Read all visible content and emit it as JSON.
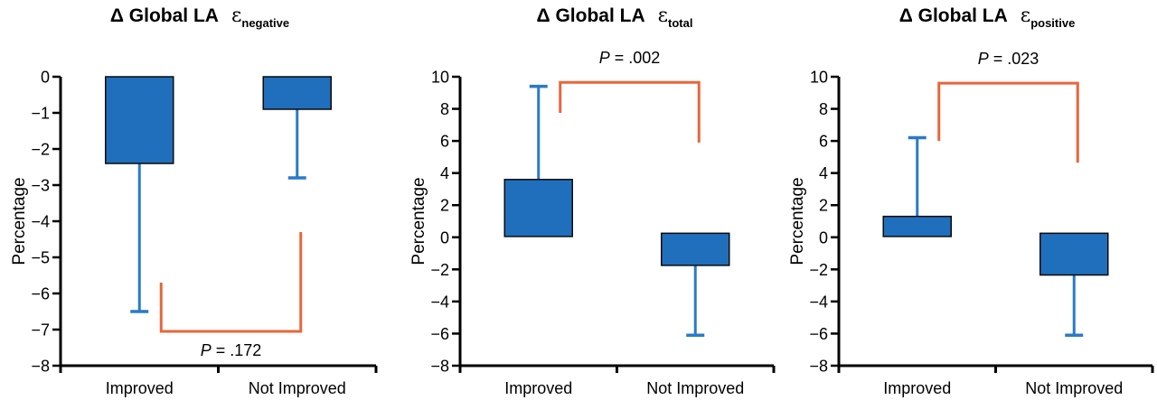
{
  "colors": {
    "bar_fill": "#1f6fbd",
    "bar_stroke": "#0a0a0a",
    "error_bar": "#2a7ac8",
    "bracket": "#e8663a",
    "axis": "#000000"
  },
  "chart_data": [
    {
      "type": "bar",
      "title": "Δ Global LA",
      "title_symbol": "ε",
      "title_subscript": "negative",
      "xlabel": "",
      "ylabel": "Percentage",
      "ylim": [
        -8,
        0
      ],
      "yticks": [
        0,
        -1,
        -2,
        -3,
        -4,
        -5,
        -6,
        -7,
        -8
      ],
      "ytick_labels": [
        "0",
        "−1",
        "−2",
        "−3",
        "−4",
        "−5",
        "−6",
        "−7",
        "−8"
      ],
      "categories": [
        "Improved",
        "Not Improved"
      ],
      "values": [
        -2.4,
        -0.9
      ],
      "error_bars": [
        -6.5,
        -2.8
      ],
      "significance": {
        "label_prefix": "P",
        "label_value": " = .172",
        "left_end": -5.7,
        "right_end": -4.3,
        "bar_level": -7.05,
        "label_position": "below"
      }
    },
    {
      "type": "bar",
      "title": "Δ Global LA",
      "title_symbol": "ε",
      "title_subscript": "total",
      "xlabel": "",
      "ylabel": "Percentage",
      "ylim": [
        -8,
        10
      ],
      "yticks": [
        10,
        8,
        6,
        4,
        2,
        0,
        -2,
        -4,
        -6,
        -8
      ],
      "ytick_labels": [
        "10",
        "8",
        "6",
        "4",
        "2",
        "0",
        "−2",
        "−4",
        "−6",
        "−8"
      ],
      "categories": [
        "Improved",
        "Not Improved"
      ],
      "bar_ranges": [
        [
          0.05,
          3.6
        ],
        [
          0.25,
          -1.75
        ]
      ],
      "values": [
        3.6,
        -1.75
      ],
      "error_bars": [
        9.4,
        -6.1
      ],
      "significance": {
        "label_prefix": "P",
        "label_value": " = .002",
        "left_end": 7.75,
        "right_end": 5.9,
        "bar_level": 9.65,
        "label_position": "above"
      }
    },
    {
      "type": "bar",
      "title": "Δ Global LA",
      "title_symbol": "ε",
      "title_subscript": "positive",
      "xlabel": "",
      "ylabel": "Percentage",
      "ylim": [
        -8,
        10
      ],
      "yticks": [
        10,
        8,
        6,
        4,
        2,
        0,
        -2,
        -4,
        -6,
        -8
      ],
      "ytick_labels": [
        "10",
        "8",
        "6",
        "4",
        "2",
        "0",
        "−2",
        "−4",
        "−6",
        "−8"
      ],
      "categories": [
        "Improved",
        "Not Improved"
      ],
      "bar_ranges": [
        [
          0.05,
          1.3
        ],
        [
          0.25,
          -2.35
        ]
      ],
      "values": [
        1.3,
        -2.35
      ],
      "error_bars": [
        6.2,
        -6.1
      ],
      "significance": {
        "label_prefix": "P",
        "label_value": " = .023",
        "left_end": 6.0,
        "right_end": 4.65,
        "bar_level": 9.6,
        "label_position": "above"
      }
    }
  ]
}
